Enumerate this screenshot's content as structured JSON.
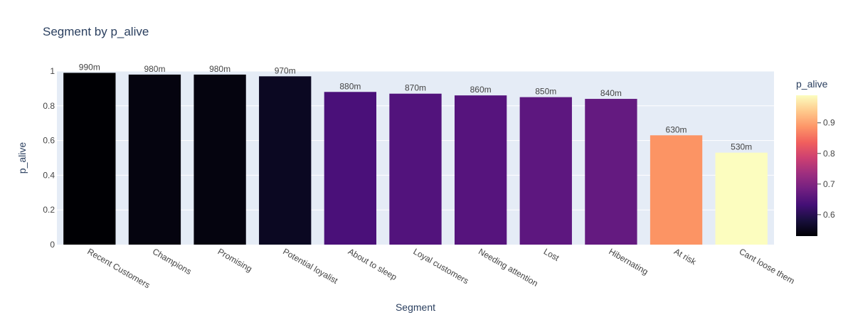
{
  "chart_data": {
    "type": "bar",
    "title": "Segment by p_alive",
    "xlabel": "Segment",
    "ylabel": "p_alive",
    "categories": [
      "Recent Customers",
      "Champions",
      "Promising",
      "Potential loyalist",
      "About to sleep",
      "Loyal customers",
      "Needing attention",
      "Lost",
      "Hibernating",
      "At risk",
      "Cant loose them"
    ],
    "values": [
      0.99,
      0.98,
      0.98,
      0.97,
      0.88,
      0.87,
      0.86,
      0.85,
      0.84,
      0.63,
      0.53
    ],
    "data_labels": [
      "990m",
      "980m",
      "980m",
      "970m",
      "880m",
      "870m",
      "860m",
      "850m",
      "840m",
      "630m",
      "530m"
    ],
    "bar_colors": [
      "#000004",
      "#05040f",
      "#05040f",
      "#0b0822",
      "#4a1079",
      "#52137c",
      "#56147d",
      "#5d177f",
      "#641a80",
      "#fc9464",
      "#fcfdbf"
    ],
    "ylim": [
      0,
      1.0
    ],
    "yticks": [
      "0",
      "0.2",
      "0.4",
      "0.6",
      "0.8",
      "1"
    ],
    "grid": true,
    "colorbar": {
      "title": "p_alive",
      "range": [
        0.53,
        0.99
      ],
      "ticks": [
        "0.6",
        "0.7",
        "0.8",
        "0.9"
      ],
      "tick_values": [
        0.6,
        0.7,
        0.8,
        0.9
      ],
      "colors": [
        "#000004",
        "#180f3d",
        "#440f76",
        "#721f81",
        "#9e2f7f",
        "#cd4071",
        "#f1605d",
        "#fd9668",
        "#feca8d",
        "#fcfdbf"
      ]
    },
    "colors": {
      "plot_background": "#e5ecf6",
      "grid": "#ffffff",
      "text": "#2a3f5f",
      "label_text": "#444444"
    }
  }
}
